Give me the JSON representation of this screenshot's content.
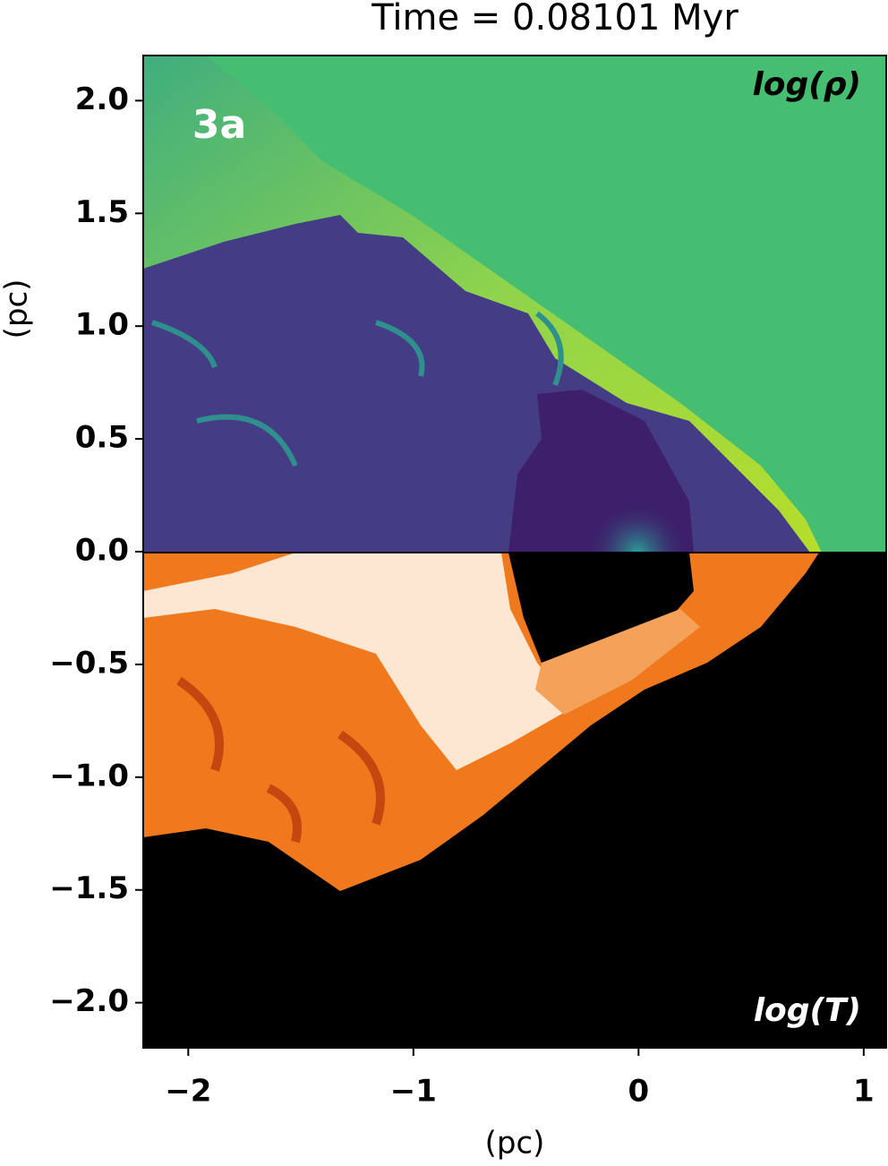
{
  "chart_data": {
    "type": "image",
    "title": "Time = 0.08101 Myr",
    "xlabel": "(pc)",
    "ylabel": "(pc)",
    "annotations": [
      "3a",
      "log(ρ)",
      "log(T)"
    ],
    "xlim": [
      -2.2,
      1.1
    ],
    "ylim": [
      -2.2,
      2.2
    ],
    "xticks": [
      {
        "value": -2,
        "label": "−2"
      },
      {
        "value": -1,
        "label": "−1"
      },
      0,
      1
    ],
    "yticks": [
      {
        "value": 2,
        "label": "2.0"
      },
      {
        "value": 1.5,
        "label": "1.5"
      },
      {
        "value": 1,
        "label": "1.0"
      },
      {
        "value": 0.5,
        "label": "0.5"
      },
      {
        "value": 0,
        "label": "0.0"
      },
      {
        "value": -0.5,
        "label": "−0.5"
      },
      {
        "value": -1,
        "label": "−1.0"
      },
      {
        "value": -1.5,
        "label": "−1.5"
      },
      {
        "value": -2,
        "label": "−2.0"
      }
    ]
  }
}
